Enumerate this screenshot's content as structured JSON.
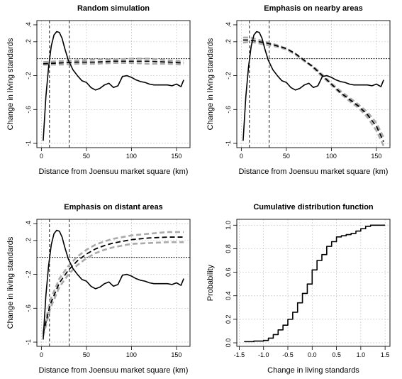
{
  "chart_data": [
    {
      "type": "line",
      "title": "Random simulation",
      "xlabel": "Distance from Joensuu market square (km)",
      "ylabel": "Change in living standards",
      "xlim": [
        -5,
        165
      ],
      "ylim": [
        -1.05,
        0.45
      ],
      "xticks": [
        0,
        50,
        100,
        150
      ],
      "yticks": [
        -1.0,
        -0.6,
        -0.2,
        0.2,
        0.4
      ],
      "grid": true,
      "hline": 0,
      "vlines": [
        9,
        31
      ],
      "series": [
        {
          "style": "solid",
          "color": "#000000",
          "x": [
            2,
            5,
            8,
            11,
            14,
            17,
            20,
            23,
            26,
            30,
            35,
            40,
            45,
            50,
            55,
            60,
            65,
            70,
            75,
            80,
            85,
            90,
            95,
            100,
            105,
            110,
            115,
            120,
            125,
            130,
            135,
            140,
            145,
            150,
            155,
            158
          ],
          "y": [
            -0.97,
            -0.45,
            -0.1,
            0.15,
            0.28,
            0.32,
            0.31,
            0.24,
            0.12,
            -0.02,
            -0.13,
            -0.2,
            -0.26,
            -0.28,
            -0.34,
            -0.37,
            -0.35,
            -0.31,
            -0.29,
            -0.34,
            -0.32,
            -0.21,
            -0.2,
            -0.22,
            -0.25,
            -0.27,
            -0.28,
            -0.3,
            -0.31,
            -0.31,
            -0.31,
            -0.31,
            -0.32,
            -0.3,
            -0.33,
            -0.25
          ]
        },
        {
          "style": "dashed",
          "color": "#000000",
          "x": [
            2,
            20,
            40,
            60,
            80,
            100,
            120,
            140,
            158
          ],
          "y": [
            -0.06,
            -0.05,
            -0.04,
            -0.04,
            -0.03,
            -0.03,
            -0.03,
            -0.04,
            -0.05
          ]
        },
        {
          "style": "dashed",
          "color": "#aaaaaa",
          "x": [
            2,
            20,
            40,
            60,
            80,
            100,
            120,
            140,
            158
          ],
          "y": [
            -0.04,
            -0.03,
            -0.02,
            -0.01,
            -0.01,
            0.0,
            0.0,
            -0.02,
            -0.03
          ]
        },
        {
          "style": "dashed",
          "color": "#aaaaaa",
          "x": [
            2,
            20,
            40,
            60,
            80,
            100,
            120,
            140,
            158
          ],
          "y": [
            -0.07,
            -0.07,
            -0.06,
            -0.06,
            -0.05,
            -0.05,
            -0.06,
            -0.06,
            -0.07
          ]
        }
      ]
    },
    {
      "type": "line",
      "title": "Emphasis on nearby areas",
      "xlabel": "Distance from Joensuu market square (km)",
      "ylabel": "Change in living standards",
      "xlim": [
        -5,
        165
      ],
      "ylim": [
        -1.05,
        0.45
      ],
      "xticks": [
        0,
        50,
        100,
        150
      ],
      "yticks": [
        -1.0,
        -0.6,
        -0.2,
        0.2,
        0.4
      ],
      "grid": true,
      "hline": 0,
      "vlines": [
        9,
        31
      ],
      "series": [
        {
          "style": "solid",
          "color": "#000000",
          "x": [
            2,
            5,
            8,
            11,
            14,
            17,
            20,
            23,
            26,
            30,
            35,
            40,
            45,
            50,
            55,
            60,
            65,
            70,
            75,
            80,
            85,
            90,
            95,
            100,
            105,
            110,
            115,
            120,
            125,
            130,
            135,
            140,
            145,
            150,
            155,
            158
          ],
          "y": [
            -0.97,
            -0.45,
            -0.1,
            0.15,
            0.28,
            0.32,
            0.31,
            0.24,
            0.12,
            -0.02,
            -0.13,
            -0.2,
            -0.26,
            -0.28,
            -0.34,
            -0.37,
            -0.35,
            -0.31,
            -0.29,
            -0.34,
            -0.32,
            -0.21,
            -0.2,
            -0.22,
            -0.25,
            -0.27,
            -0.28,
            -0.3,
            -0.31,
            -0.31,
            -0.31,
            -0.31,
            -0.32,
            -0.3,
            -0.33,
            -0.25
          ]
        },
        {
          "style": "dashed",
          "color": "#000000",
          "x": [
            2,
            10,
            20,
            30,
            40,
            50,
            60,
            70,
            80,
            90,
            100,
            110,
            120,
            130,
            140,
            150,
            158
          ],
          "y": [
            0.22,
            0.22,
            0.2,
            0.18,
            0.15,
            0.12,
            0.06,
            -0.02,
            -0.1,
            -0.2,
            -0.3,
            -0.4,
            -0.48,
            -0.56,
            -0.66,
            -0.8,
            -0.98
          ]
        },
        {
          "style": "dashed",
          "color": "#aaaaaa",
          "x": [
            2,
            10,
            20,
            30,
            40,
            50,
            60,
            70,
            80,
            90,
            100,
            110,
            120,
            130,
            140,
            150,
            158
          ],
          "y": [
            0.25,
            0.25,
            0.22,
            0.19,
            0.16,
            0.12,
            0.06,
            -0.02,
            -0.11,
            -0.21,
            -0.31,
            -0.41,
            -0.5,
            -0.58,
            -0.69,
            -0.85,
            -1.03
          ]
        },
        {
          "style": "dashed",
          "color": "#aaaaaa",
          "x": [
            2,
            10,
            20,
            30,
            40,
            50,
            60,
            70,
            80,
            90,
            100,
            110,
            120,
            130,
            140,
            150,
            158
          ],
          "y": [
            0.19,
            0.2,
            0.18,
            0.16,
            0.14,
            0.11,
            0.05,
            -0.03,
            -0.09,
            -0.19,
            -0.29,
            -0.38,
            -0.46,
            -0.54,
            -0.63,
            -0.76,
            -0.93
          ]
        }
      ]
    },
    {
      "type": "line",
      "title": "Emphasis on distant areas",
      "xlabel": "Distance from Joensuu market square (km)",
      "ylabel": "Change in living standards",
      "xlim": [
        -5,
        165
      ],
      "ylim": [
        -1.05,
        0.45
      ],
      "xticks": [
        0,
        50,
        100,
        150
      ],
      "yticks": [
        -1.0,
        -0.6,
        -0.2,
        0.2,
        0.4
      ],
      "grid": true,
      "hline": 0,
      "vlines": [
        9,
        31
      ],
      "series": [
        {
          "style": "solid",
          "color": "#000000",
          "x": [
            2,
            5,
            8,
            11,
            14,
            17,
            20,
            23,
            26,
            30,
            35,
            40,
            45,
            50,
            55,
            60,
            65,
            70,
            75,
            80,
            85,
            90,
            95,
            100,
            105,
            110,
            115,
            120,
            125,
            130,
            135,
            140,
            145,
            150,
            155,
            158
          ],
          "y": [
            -0.97,
            -0.45,
            -0.1,
            0.15,
            0.28,
            0.32,
            0.31,
            0.24,
            0.12,
            -0.02,
            -0.13,
            -0.2,
            -0.26,
            -0.28,
            -0.34,
            -0.37,
            -0.35,
            -0.31,
            -0.29,
            -0.34,
            -0.32,
            -0.21,
            -0.2,
            -0.22,
            -0.25,
            -0.27,
            -0.28,
            -0.3,
            -0.31,
            -0.31,
            -0.31,
            -0.31,
            -0.32,
            -0.3,
            -0.33,
            -0.25
          ]
        },
        {
          "style": "dashed",
          "color": "#000000",
          "x": [
            2,
            10,
            20,
            30,
            40,
            50,
            60,
            70,
            80,
            90,
            100,
            120,
            140,
            158
          ],
          "y": [
            -0.9,
            -0.55,
            -0.3,
            -0.15,
            -0.04,
            0.04,
            0.1,
            0.14,
            0.17,
            0.19,
            0.21,
            0.23,
            0.24,
            0.24
          ]
        },
        {
          "style": "dashed",
          "color": "#aaaaaa",
          "x": [
            2,
            10,
            20,
            30,
            40,
            50,
            60,
            70,
            80,
            90,
            100,
            120,
            140,
            158
          ],
          "y": [
            -0.88,
            -0.5,
            -0.25,
            -0.1,
            0.01,
            0.09,
            0.15,
            0.19,
            0.22,
            0.24,
            0.26,
            0.28,
            0.3,
            0.3
          ]
        },
        {
          "style": "dashed",
          "color": "#aaaaaa",
          "x": [
            2,
            10,
            20,
            30,
            40,
            50,
            60,
            70,
            80,
            90,
            100,
            120,
            140,
            158
          ],
          "y": [
            -0.93,
            -0.6,
            -0.35,
            -0.2,
            -0.09,
            -0.01,
            0.05,
            0.09,
            0.12,
            0.14,
            0.16,
            0.17,
            0.18,
            0.18
          ]
        }
      ]
    },
    {
      "type": "line",
      "title": "Cumulative distribution function",
      "xlabel": "Change in living standards",
      "ylabel": "Probability",
      "xlim": [
        -1.55,
        1.6
      ],
      "ylim": [
        -0.03,
        1.05
      ],
      "xticks": [
        -1.5,
        -1.0,
        -0.5,
        0.0,
        0.5,
        1.0,
        1.5
      ],
      "xticklabels": [
        "-1.5",
        "-1.0",
        "-0.5",
        "0.0",
        "0.5",
        "1.0",
        "1.5"
      ],
      "yticks": [
        0.0,
        0.2,
        0.4,
        0.6,
        0.8,
        1.0
      ],
      "yticklabels": [
        "0.0",
        "0.2",
        "0.4",
        "0.6",
        "0.8",
        "1.0"
      ],
      "grid": true,
      "series": [
        {
          "style": "step",
          "color": "#000000",
          "x": [
            -1.4,
            -1.2,
            -1.0,
            -0.9,
            -0.8,
            -0.7,
            -0.6,
            -0.5,
            -0.4,
            -0.3,
            -0.2,
            -0.1,
            0.0,
            0.1,
            0.2,
            0.3,
            0.4,
            0.5,
            0.6,
            0.7,
            0.8,
            0.9,
            1.0,
            1.1,
            1.2,
            1.3,
            1.5
          ],
          "y": [
            0.01,
            0.015,
            0.02,
            0.04,
            0.07,
            0.11,
            0.15,
            0.2,
            0.26,
            0.34,
            0.42,
            0.5,
            0.62,
            0.7,
            0.75,
            0.82,
            0.86,
            0.9,
            0.91,
            0.92,
            0.93,
            0.95,
            0.97,
            0.99,
            1.0,
            1.0,
            1.0
          ]
        }
      ]
    }
  ]
}
